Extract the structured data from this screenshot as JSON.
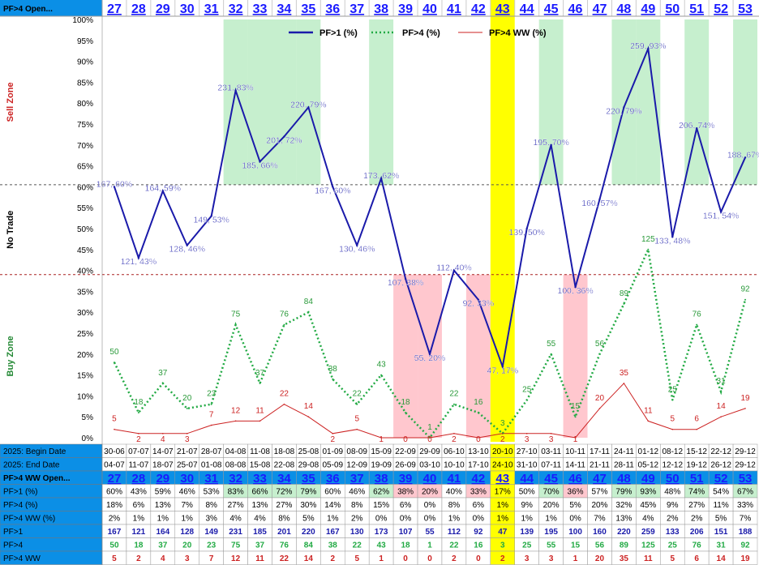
{
  "header": {
    "title": "PF>4 Open..."
  },
  "weeks": [
    "27",
    "28",
    "29",
    "30",
    "31",
    "32",
    "33",
    "34",
    "35",
    "36",
    "37",
    "38",
    "39",
    "40",
    "41",
    "42",
    "43",
    "44",
    "45",
    "46",
    "47",
    "48",
    "49",
    "50",
    "51",
    "52",
    "53"
  ],
  "highlight_week": "43",
  "zones": {
    "sell": "Sell Zone",
    "notrade": "No Trade",
    "buy": "Buy Zone"
  },
  "legend": [
    "PF>1 (%)",
    "PF>4 (%)",
    "PF>4 WW (%)"
  ],
  "colors": {
    "pf1": "#1a1aaa",
    "pf4": "#22aa44",
    "ww": "#cc2222",
    "green_band": "#c6efce",
    "red_band": "#ffc7ce",
    "highlight": "#ffff00",
    "header_bg": "#0b8fe6",
    "week_blue": "#1a1aff"
  },
  "chart_data": {
    "type": "line",
    "ylim": [
      0,
      100
    ],
    "ytick_labels": [
      "100%",
      "95%",
      "90%",
      "85%",
      "80%",
      "75%",
      "70%",
      "65%",
      "60%",
      "55%",
      "50%",
      "45%",
      "40%",
      "35%",
      "30%",
      "25%",
      "20%",
      "15%",
      "10%",
      "5%",
      "0%"
    ],
    "categories": [
      "27",
      "28",
      "29",
      "30",
      "31",
      "32",
      "33",
      "34",
      "35",
      "36",
      "37",
      "38",
      "39",
      "40",
      "41",
      "42",
      "43",
      "44",
      "45",
      "46",
      "47",
      "48",
      "49",
      "50",
      "51",
      "52",
      "53"
    ],
    "series": [
      {
        "name": "PF>1 (%)",
        "values": [
          60,
          43,
          59,
          46,
          53,
          83,
          66,
          72,
          79,
          60,
          46,
          62,
          38,
          20,
          40,
          33,
          17,
          50,
          70,
          36,
          57,
          79,
          93,
          48,
          74,
          54,
          67
        ],
        "labels": [
          "167, 60%",
          "121, 43%",
          "164, 59%",
          "128, 46%",
          "149, 53%",
          "231, 83%",
          "185, 66%",
          "201, 72%",
          "220, 79%",
          "167, 60%",
          "130, 46%",
          "173, 62%",
          "107, 38%",
          "55, 20%",
          "112, 40%",
          "92, 33%",
          "47, 17%",
          "139, 50%",
          "195, 70%",
          "100, 36%",
          "160, 57%",
          "220, 79%",
          "259, 93%",
          "133, 48%",
          "206, 74%",
          "151, 54%",
          "188, 67%"
        ]
      },
      {
        "name": "PF>4 (%)",
        "values": [
          18,
          6,
          13,
          7,
          8,
          27,
          13,
          27,
          30,
          14,
          8,
          15,
          6,
          0,
          8,
          6,
          1,
          9,
          20,
          5,
          20,
          32,
          45,
          9,
          27,
          11,
          33
        ],
        "labels": [
          "50",
          "18",
          "37",
          "20",
          "23",
          "75",
          "37",
          "76",
          "84",
          "38",
          "22",
          "43",
          "18",
          "1",
          "22",
          "16",
          "3",
          "25",
          "55",
          "15",
          "56",
          "89",
          "125",
          "25",
          "76",
          "31",
          "92"
        ]
      },
      {
        "name": "PF>4 WW (%)",
        "values": [
          2,
          1,
          1,
          1,
          3,
          4,
          4,
          8,
          5,
          1,
          2,
          0,
          0,
          0,
          1,
          0,
          1,
          1,
          1,
          0,
          7,
          13,
          4,
          2,
          2,
          5,
          7
        ],
        "labels": [
          "5",
          "2",
          "4",
          "3",
          "7",
          "12",
          "11",
          "22",
          "14",
          "2",
          "5",
          "1",
          "0",
          "0",
          "2",
          "0",
          "2",
          "3",
          "3",
          "1",
          "20",
          "35",
          "11",
          "5",
          "6",
          "14",
          "19"
        ]
      }
    ],
    "green_bands_weeks": [
      "32",
      "33",
      "34",
      "35",
      "38",
      "45",
      "48",
      "49",
      "51",
      "53"
    ],
    "red_bands_weeks": [
      "39",
      "40",
      "42",
      "46"
    ]
  },
  "table": {
    "rows": [
      {
        "label": "2025: Begin Date",
        "values": [
          "30-06",
          "07-07",
          "14-07",
          "21-07",
          "28-07",
          "04-08",
          "11-08",
          "18-08",
          "25-08",
          "01-09",
          "08-09",
          "15-09",
          "22-09",
          "29-09",
          "06-10",
          "13-10",
          "20-10",
          "27-10",
          "03-11",
          "10-11",
          "17-11",
          "24-11",
          "01-12",
          "08-12",
          "15-12",
          "22-12",
          "29-12"
        ]
      },
      {
        "label": "2025: End Date",
        "values": [
          "04-07",
          "11-07",
          "18-07",
          "25-07",
          "01-08",
          "08-08",
          "15-08",
          "22-08",
          "29-08",
          "05-09",
          "12-09",
          "19-09",
          "26-09",
          "03-10",
          "10-10",
          "17-10",
          "24-10",
          "31-10",
          "07-11",
          "14-11",
          "21-11",
          "28-11",
          "05-12",
          "12-12",
          "19-12",
          "26-12",
          "29-12"
        ]
      },
      {
        "label": "PF>4 WW Open...",
        "values": [
          "27",
          "28",
          "29",
          "30",
          "31",
          "32",
          "33",
          "34",
          "35",
          "36",
          "37",
          "38",
          "39",
          "40",
          "41",
          "42",
          "43",
          "44",
          "45",
          "46",
          "47",
          "48",
          "49",
          "50",
          "51",
          "52",
          "53"
        ]
      },
      {
        "label": "PF>1 (%)",
        "values": [
          "60%",
          "43%",
          "59%",
          "46%",
          "53%",
          "83%",
          "66%",
          "72%",
          "79%",
          "60%",
          "46%",
          "62%",
          "38%",
          "20%",
          "40%",
          "33%",
          "17%",
          "50%",
          "70%",
          "36%",
          "57%",
          "79%",
          "93%",
          "48%",
          "74%",
          "54%",
          "67%"
        ]
      },
      {
        "label": "PF>4 (%)",
        "values": [
          "18%",
          "6%",
          "13%",
          "7%",
          "8%",
          "27%",
          "13%",
          "27%",
          "30%",
          "14%",
          "8%",
          "15%",
          "6%",
          "0%",
          "8%",
          "6%",
          "1%",
          "9%",
          "20%",
          "5%",
          "20%",
          "32%",
          "45%",
          "9%",
          "27%",
          "11%",
          "33%"
        ]
      },
      {
        "label": "PF>4 WW (%)",
        "values": [
          "2%",
          "1%",
          "1%",
          "1%",
          "3%",
          "4%",
          "4%",
          "8%",
          "5%",
          "1%",
          "2%",
          "0%",
          "0%",
          "0%",
          "1%",
          "0%",
          "1%",
          "1%",
          "1%",
          "0%",
          "7%",
          "13%",
          "4%",
          "2%",
          "2%",
          "5%",
          "7%"
        ]
      },
      {
        "label": "PF>1",
        "values": [
          "167",
          "121",
          "164",
          "128",
          "149",
          "231",
          "185",
          "201",
          "220",
          "167",
          "130",
          "173",
          "107",
          "55",
          "112",
          "92",
          "47",
          "139",
          "195",
          "100",
          "160",
          "220",
          "259",
          "133",
          "206",
          "151",
          "188"
        ]
      },
      {
        "label": "PF>4",
        "values": [
          "50",
          "18",
          "37",
          "20",
          "23",
          "75",
          "37",
          "76",
          "84",
          "38",
          "22",
          "43",
          "18",
          "1",
          "22",
          "16",
          "3",
          "25",
          "55",
          "15",
          "56",
          "89",
          "125",
          "25",
          "76",
          "31",
          "92"
        ]
      },
      {
        "label": "PF>4 WW",
        "values": [
          "5",
          "2",
          "4",
          "3",
          "7",
          "12",
          "11",
          "22",
          "14",
          "2",
          "5",
          "1",
          "0",
          "0",
          "2",
          "0",
          "2",
          "3",
          "3",
          "1",
          "20",
          "35",
          "11",
          "5",
          "6",
          "14",
          "19"
        ]
      }
    ]
  }
}
